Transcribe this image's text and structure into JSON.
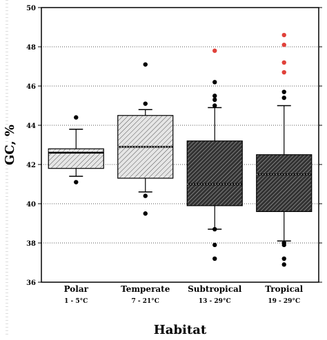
{
  "chart_data": {
    "type": "box",
    "title": "",
    "ylabel": "GC, %",
    "xlabel": "Habitat",
    "ylim": [
      36,
      50
    ],
    "yticks": [
      36,
      38,
      40,
      42,
      44,
      46,
      48,
      50
    ],
    "grid": "horizontal dotted",
    "categories": [
      {
        "name": "Polar",
        "range": "1 - 5°C",
        "min": 41.4,
        "q1": 41.8,
        "median": 42.6,
        "mean": 42.7,
        "q3": 42.8,
        "max": 43.8,
        "outliers": [
          41.1,
          44.4
        ],
        "extreme_outliers": [],
        "fill": "light"
      },
      {
        "name": "Temperate",
        "range": "7 - 21°C",
        "min": 40.6,
        "q1": 41.3,
        "median": 42.9,
        "mean": 42.9,
        "q3": 44.5,
        "max": 44.8,
        "outliers": [
          39.5,
          40.4,
          45.1,
          47.1
        ],
        "extreme_outliers": [],
        "fill": "light"
      },
      {
        "name": "Subtropical",
        "range": "13 - 29°C",
        "min": 38.7,
        "q1": 39.9,
        "median": 41.0,
        "mean": 41.0,
        "q3": 43.2,
        "max": 44.9,
        "outliers": [
          37.2,
          37.9,
          38.7,
          45.0,
          45.3,
          45.5,
          46.2
        ],
        "extreme_outliers": [
          47.8
        ],
        "fill": "dark"
      },
      {
        "name": "Tropical",
        "range": "19 - 29°C",
        "min": 38.1,
        "q1": 39.6,
        "median": 41.5,
        "mean": 41.5,
        "q3": 42.5,
        "max": 45.0,
        "outliers": [
          36.9,
          37.2,
          37.9,
          38.0,
          45.4,
          45.7
        ],
        "extreme_outliers": [
          46.7,
          47.2,
          48.1,
          48.6
        ],
        "fill": "dark"
      }
    ]
  }
}
